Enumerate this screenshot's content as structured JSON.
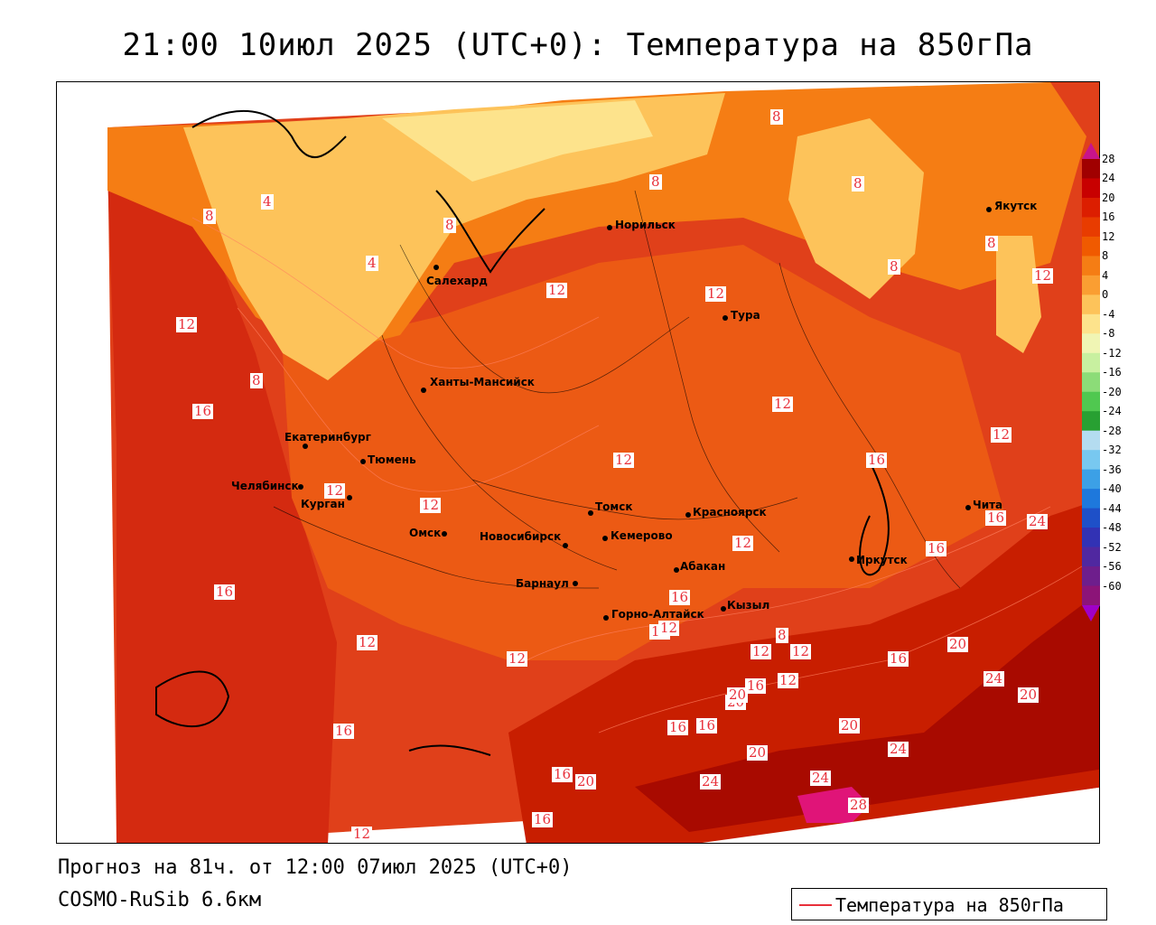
{
  "title": "21:00 10июл 2025 (UTC+0): Температура на 850гПа",
  "footer": {
    "forecast": "Прогноз на 81ч. от 12:00 07июл 2025 (UTC+0)",
    "model": "COSMO-RuSib 6.6км"
  },
  "legend": {
    "label": "Температура на 850гПа",
    "line_color": "#e8303a"
  },
  "color_scale": {
    "labels": [
      "28",
      "24",
      "20",
      "16",
      "12",
      "8",
      "4",
      "0",
      "-4",
      "-8",
      "-12",
      "-16",
      "-20",
      "-24",
      "-28",
      "-32",
      "-36",
      "-40",
      "-44",
      "-48",
      "-52",
      "-56",
      "-60"
    ],
    "colors": [
      "#a00000",
      "#c80000",
      "#dc1e00",
      "#e83c00",
      "#f05a00",
      "#f57d14",
      "#fa9e32",
      "#fdc35a",
      "#fde38c",
      "#f0f5b4",
      "#c8f0a0",
      "#8cdc78",
      "#50c850",
      "#28a032",
      "#b4dcf0",
      "#78c8f0",
      "#3ca0e6",
      "#1e78dc",
      "#1e50c8",
      "#3232b4",
      "#5028a0",
      "#6e1e8c",
      "#8c1478"
    ]
  },
  "cities": [
    {
      "name": "Норильск"
    },
    {
      "name": "Якутск"
    },
    {
      "name": "Салехард"
    },
    {
      "name": "Тура"
    },
    {
      "name": "Ханты-Мансийск"
    },
    {
      "name": "Екатеринбург"
    },
    {
      "name": "Тюмень"
    },
    {
      "name": "Челябинск"
    },
    {
      "name": "Курган"
    },
    {
      "name": "Омск"
    },
    {
      "name": "Новосибирск"
    },
    {
      "name": "Томск"
    },
    {
      "name": "Красноярск"
    },
    {
      "name": "Кемерово"
    },
    {
      "name": "Барнаул"
    },
    {
      "name": "Абакан"
    },
    {
      "name": "Иркутск"
    },
    {
      "name": "Чита"
    },
    {
      "name": "Кызыл"
    },
    {
      "name": "Горно-Алтайск"
    }
  ],
  "contour_labels": [
    "8",
    "8",
    "8",
    "8",
    "4",
    "8",
    "4",
    "8",
    "12",
    "12",
    "12",
    "8",
    "12",
    "16",
    "8",
    "12",
    "12",
    "12",
    "12",
    "12",
    "16",
    "16",
    "12",
    "12",
    "12",
    "16",
    "16",
    "12",
    "16",
    "16",
    "20",
    "20",
    "24",
    "24",
    "20",
    "16",
    "20",
    "16",
    "16",
    "20",
    "24",
    "20",
    "24",
    "24",
    "28",
    "16",
    "16",
    "12",
    "8",
    "12",
    "12",
    "20",
    "16",
    "12",
    "12"
  ]
}
